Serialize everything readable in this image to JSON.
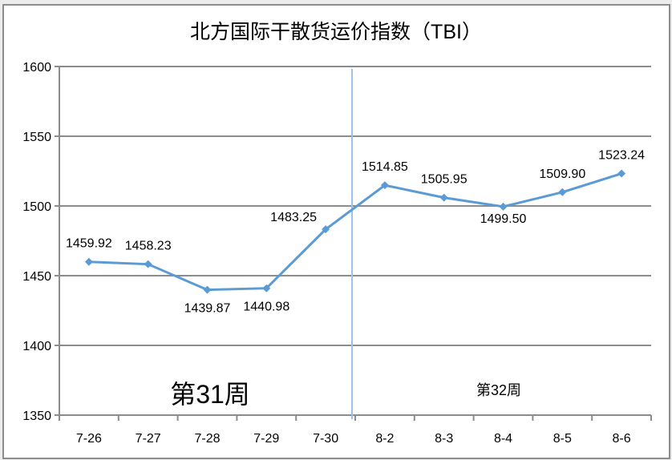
{
  "chart_data": {
    "type": "line",
    "title": "北方国际干散货运价指数（TBI）",
    "categories": [
      "7-26",
      "7-27",
      "7-28",
      "7-29",
      "7-30",
      "8-2",
      "8-3",
      "8-4",
      "8-5",
      "8-6"
    ],
    "values": [
      1459.92,
      1458.23,
      1439.87,
      1440.98,
      1483.25,
      1514.85,
      1505.95,
      1499.5,
      1509.9,
      1523.24
    ],
    "value_labels": [
      "1459.92",
      "1458.23",
      "1439.87",
      "1440.98",
      "1483.25",
      "1514.85",
      "1505.95",
      "1499.50",
      "1509.90",
      "1523.24"
    ],
    "ylim": [
      1350,
      1600
    ],
    "yticks": [
      "1350",
      "1400",
      "1450",
      "1500",
      "1550",
      "1600"
    ],
    "grid": "horizontal",
    "legend": "none",
    "line_color": "#5b9bd5",
    "divider_color": "#9dc3e6",
    "annotations": {
      "week31": "第31周",
      "week32": "第32周"
    }
  }
}
